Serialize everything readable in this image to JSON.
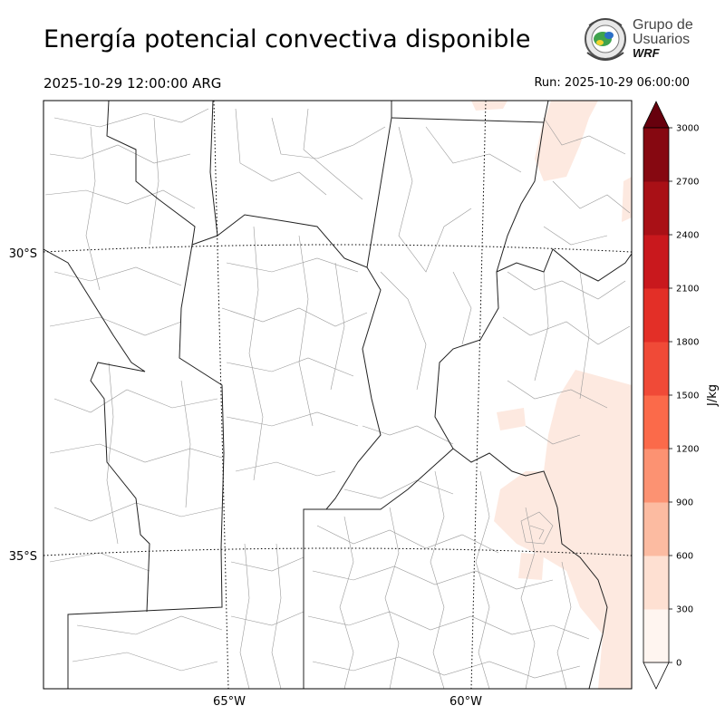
{
  "title": "Energía potencial convectiva disponible",
  "valid_time": "2025-10-29 12:00:00 ARG",
  "run_time": "Run: 2025-10-29 06:00:00",
  "logo": {
    "line1": "Grupo de",
    "line2": "Usuarios",
    "line3": "WRF"
  },
  "map": {
    "lat_labels": [
      "30°S",
      "35°S"
    ],
    "lon_labels": [
      "65°W",
      "60°W"
    ],
    "shading_color": "#fde9e0"
  },
  "colorbar": {
    "unit_label": "J/kg",
    "ticks": [
      "0",
      "300",
      "600",
      "900",
      "1200",
      "1500",
      "1800",
      "2100",
      "2400",
      "2700",
      "3000"
    ],
    "colors": [
      "#fff5f0",
      "#fee0d2",
      "#fcbba1",
      "#fc9272",
      "#fb6a4a",
      "#f04a37",
      "#e32f27",
      "#c9181d",
      "#a91016",
      "#860811"
    ],
    "under_color": "#ffffff",
    "over_color": "#67000d"
  }
}
